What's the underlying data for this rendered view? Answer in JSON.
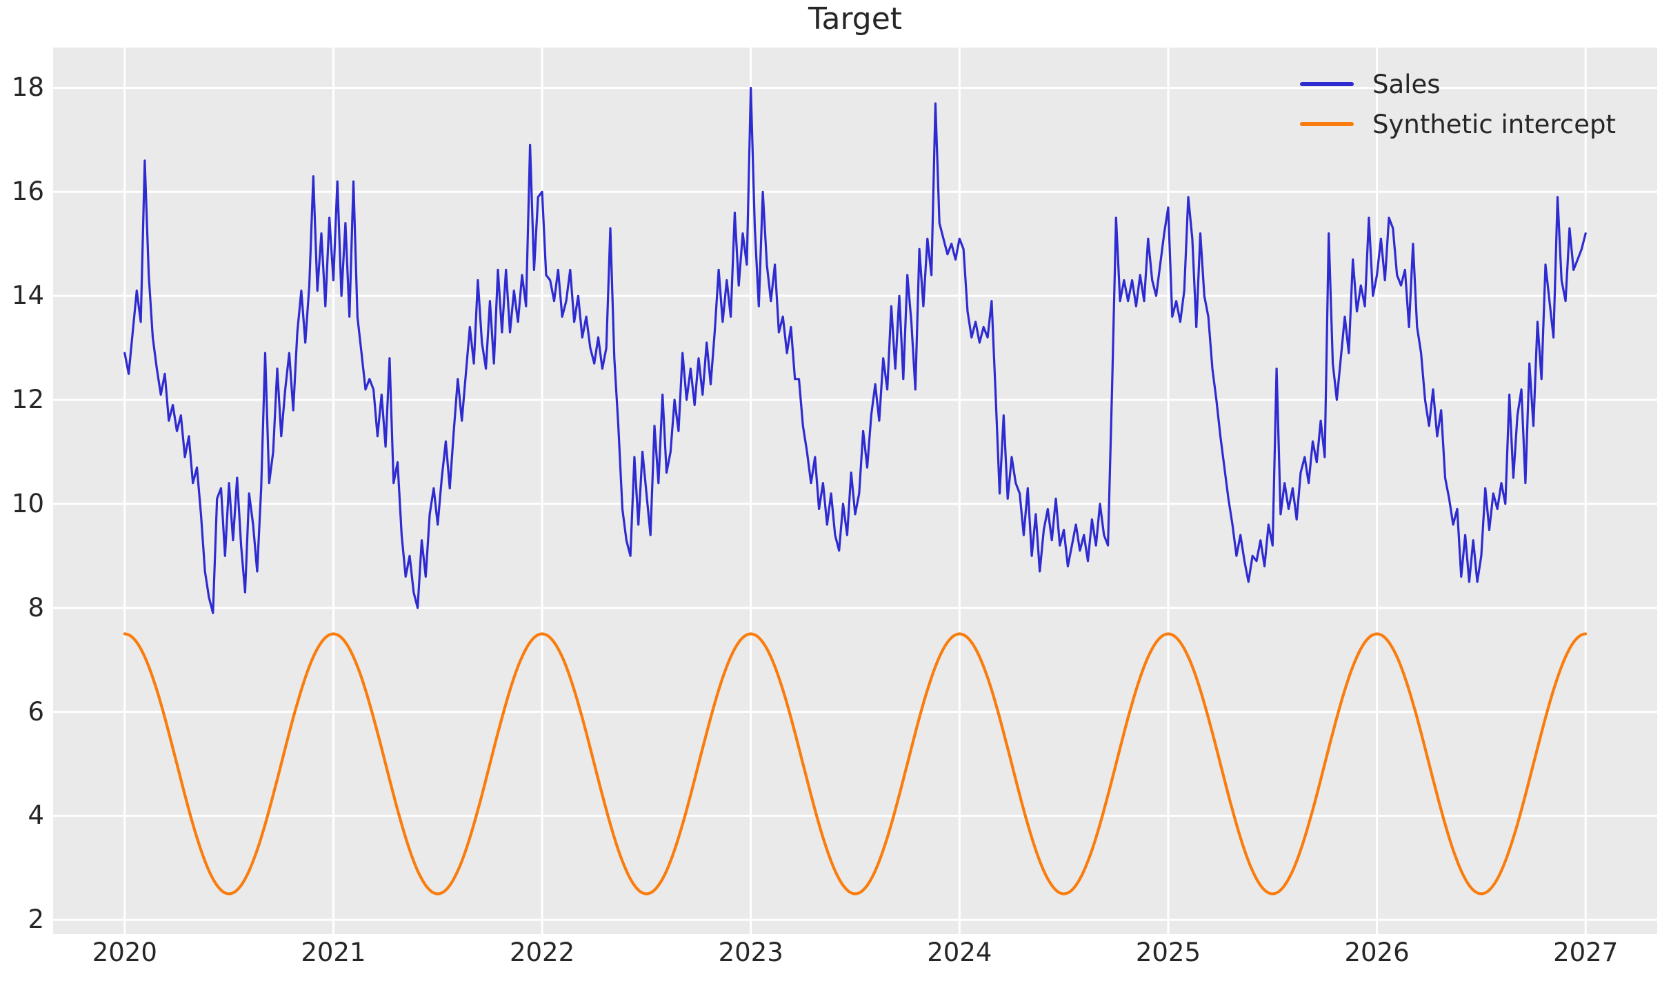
{
  "title": "Target",
  "legend": {
    "position": "upper right",
    "items": [
      {
        "label": "Sales",
        "color": "#2e2bd1"
      },
      {
        "label": "Synthetic intercept",
        "color": "#f97d0e"
      }
    ]
  },
  "colors": {
    "figure_background": "#ffffff",
    "plot_background": "#eaeaea",
    "grid": "#ffffff",
    "text": "#262626",
    "sales_line": "#2e2bd1",
    "synthetic_line": "#f97d0e"
  },
  "chart_data": {
    "type": "line",
    "title": "Target",
    "xlabel": "",
    "ylabel": "",
    "grid": true,
    "legend_position": "upper right",
    "x_axis": {
      "range": [
        2019.657,
        2027.343
      ],
      "ticks": [
        2020,
        2021,
        2022,
        2023,
        2024,
        2025,
        2026,
        2027
      ],
      "tick_labels": [
        "2020",
        "2021",
        "2022",
        "2023",
        "2024",
        "2025",
        "2026",
        "2027"
      ]
    },
    "y_axis": {
      "range": [
        1.725,
        18.775
      ],
      "ticks": [
        2,
        4,
        6,
        8,
        10,
        12,
        14,
        16,
        18
      ],
      "tick_labels": [
        "2",
        "4",
        "6",
        "8",
        "10",
        "12",
        "14",
        "16",
        "18"
      ]
    },
    "series": [
      {
        "name": "Sales",
        "color": "#2e2bd1",
        "line_width": 3.2,
        "sampling": "weekly",
        "x_start": 2020.0,
        "x_end": 2027.0,
        "points_per_year": 52,
        "values_by_year": [
          [
            12.9,
            12.5,
            13.3,
            14.1,
            13.5,
            16.6,
            14.4,
            13.2,
            12.6,
            12.1,
            12.5,
            11.6,
            11.9,
            11.4,
            11.7,
            10.9,
            11.3,
            10.4,
            10.7,
            9.8,
            8.7,
            8.2,
            7.9,
            10.1,
            10.3,
            9.0,
            10.4,
            9.3,
            10.5,
            9.2,
            8.3,
            10.2,
            9.6,
            8.7,
            10.3,
            12.9,
            10.4,
            11.0,
            12.6,
            11.3,
            12.2,
            12.9,
            11.8,
            13.3,
            14.1,
            13.1,
            14.2,
            16.3,
            14.1,
            15.2,
            13.8,
            15.5
          ],
          [
            14.3,
            16.2,
            14.0,
            15.4,
            13.6,
            16.2,
            13.6,
            12.9,
            12.2,
            12.4,
            12.2,
            11.3,
            12.1,
            11.1,
            12.8,
            10.4,
            10.8,
            9.4,
            8.6,
            9.0,
            8.3,
            8.0,
            9.3,
            8.6,
            9.8,
            10.3,
            9.6,
            10.5,
            11.2,
            10.3,
            11.4,
            12.4,
            11.6,
            12.5,
            13.4,
            12.7,
            14.3,
            13.1,
            12.6,
            13.9,
            12.7,
            14.5,
            13.3,
            14.5,
            13.3,
            14.1,
            13.5,
            14.4,
            13.8,
            16.9,
            14.5,
            15.9
          ],
          [
            16.0,
            14.4,
            14.3,
            13.9,
            14.5,
            13.6,
            13.9,
            14.5,
            13.5,
            14.0,
            13.2,
            13.6,
            13.0,
            12.7,
            13.2,
            12.6,
            13.0,
            15.3,
            12.8,
            11.5,
            9.9,
            9.3,
            9.0,
            10.9,
            9.6,
            11.0,
            10.2,
            9.4,
            11.5,
            10.4,
            12.1,
            10.6,
            11.0,
            12.0,
            11.4,
            12.9,
            12.0,
            12.6,
            11.9,
            12.8,
            12.1,
            13.1,
            12.3,
            13.3,
            14.5,
            13.5,
            14.3,
            13.6,
            15.6,
            14.2,
            15.2,
            14.6
          ],
          [
            18.0,
            15.3,
            13.8,
            16.0,
            14.6,
            13.9,
            14.6,
            13.3,
            13.6,
            12.9,
            13.4,
            12.4,
            12.4,
            11.5,
            11.0,
            10.4,
            10.9,
            9.9,
            10.4,
            9.6,
            10.2,
            9.4,
            9.1,
            10.0,
            9.4,
            10.6,
            9.8,
            10.2,
            11.4,
            10.7,
            11.7,
            12.3,
            11.6,
            12.8,
            12.2,
            13.8,
            12.6,
            14.0,
            12.4,
            14.4,
            13.5,
            12.2,
            14.9,
            13.8,
            15.1,
            14.4,
            17.7,
            15.4,
            15.1,
            14.8,
            15.0,
            14.7
          ],
          [
            15.1,
            14.9,
            13.7,
            13.2,
            13.5,
            13.1,
            13.4,
            13.2,
            13.9,
            12.1,
            10.2,
            11.7,
            10.1,
            10.9,
            10.4,
            10.2,
            9.4,
            10.3,
            9.0,
            9.8,
            8.7,
            9.5,
            9.9,
            9.3,
            10.1,
            9.2,
            9.5,
            8.8,
            9.2,
            9.6,
            9.1,
            9.4,
            8.9,
            9.7,
            9.2,
            10.0,
            9.4,
            9.2,
            12.2,
            15.5,
            13.9,
            14.3,
            13.9,
            14.3,
            13.8,
            14.4,
            13.9,
            15.1,
            14.3,
            14.0,
            14.6,
            15.2
          ],
          [
            15.7,
            13.6,
            13.9,
            13.5,
            14.1,
            15.9,
            15.1,
            13.4,
            15.2,
            14.0,
            13.6,
            12.6,
            12.0,
            11.3,
            10.7,
            10.1,
            9.6,
            9.0,
            9.4,
            8.9,
            8.5,
            9.0,
            8.9,
            9.3,
            8.8,
            9.6,
            9.2,
            12.6,
            9.8,
            10.4,
            9.9,
            10.3,
            9.7,
            10.6,
            10.9,
            10.4,
            11.2,
            10.8,
            11.6,
            10.9,
            15.2,
            12.7,
            12.0,
            12.8,
            13.6,
            12.9,
            14.7,
            13.7,
            14.2,
            13.8,
            15.5,
            14.0
          ],
          [
            14.4,
            15.1,
            14.3,
            15.5,
            15.3,
            14.4,
            14.2,
            14.5,
            13.4,
            15.0,
            13.4,
            12.9,
            12.0,
            11.5,
            12.2,
            11.3,
            11.8,
            10.5,
            10.1,
            9.6,
            9.9,
            8.6,
            9.4,
            8.5,
            9.3,
            8.5,
            9.0,
            10.3,
            9.5,
            10.2,
            9.9,
            10.4,
            10.0,
            12.1,
            10.5,
            11.7,
            12.2,
            10.4,
            12.7,
            11.5,
            13.5,
            12.4,
            14.6,
            13.9,
            13.2,
            15.9,
            14.3,
            13.9,
            15.3,
            14.5,
            14.7,
            14.9
          ]
        ],
        "final_value": 15.2
      },
      {
        "name": "Synthetic intercept",
        "color": "#f97d0e",
        "line_width": 4.2,
        "function": "cosine",
        "mean": 5.0,
        "amplitude": 2.5,
        "period_years": 1.0,
        "peak_at": 2020.0,
        "x_start": 2020.0,
        "x_end": 2027.0,
        "min": 2.5,
        "max": 7.5
      }
    ]
  }
}
